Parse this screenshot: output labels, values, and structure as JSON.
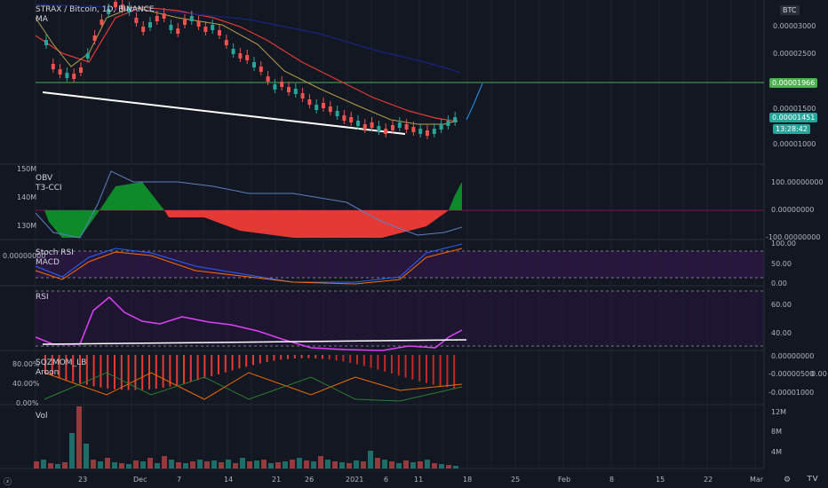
{
  "header": {
    "symbol_line": "STRAX / Bitcoin, 1D, BINANCE",
    "ma_label": "MA"
  },
  "currency_badge": "BTC",
  "price_axis": [
    "0.00003000",
    "0.00002500",
    "0.00001500",
    "0.00001000"
  ],
  "price_tags": {
    "green_line": "0.00001966",
    "last_price": "0.00001451",
    "countdown": "13:28:42"
  },
  "obv": {
    "label": "OBV",
    "label2": "T3-CCI",
    "left_ticks": [
      "150M",
      "140M",
      "130M"
    ],
    "right_ticks": [
      "100.00000000",
      "0.00000000",
      "-100.00000000"
    ]
  },
  "stoch": {
    "label": "Stoch RSI",
    "label2": "MACD",
    "left_value": "0.00000000",
    "right_ticks": [
      "100.00",
      "50.00",
      "0.00"
    ]
  },
  "rsi": {
    "label": "RSI",
    "right_ticks": [
      "60.00",
      "40.00"
    ]
  },
  "sqz": {
    "label": "SQZMOM_LB",
    "label2": "Aroon",
    "left_ticks": [
      "80.00%",
      "40.00%",
      "0.00%"
    ],
    "right_ticks": [
      "0.00000000",
      "-0.00000500",
      "-0.00001000"
    ],
    "right_value": "0.00"
  },
  "vol": {
    "label": "Vol",
    "right_ticks": [
      "12M",
      "8M",
      "4M"
    ]
  },
  "time_axis": [
    "23",
    "Dec",
    "7",
    "14",
    "21",
    "26",
    "2021",
    "6",
    "11",
    "18",
    "25",
    "Feb",
    "8",
    "15",
    "22",
    "Mar"
  ],
  "colors": {
    "bg": "#131722",
    "up": "#26a69a",
    "down": "#ef5350",
    "green_line": "#4caf50",
    "obv_up": "#0f8a2b",
    "obv_down": "#e53935",
    "rsi_line": "#e040fb",
    "ma_red": "#e53935",
    "ma_blue": "#1a237e",
    "ma_olive": "#b8a048"
  },
  "icons": {
    "settings": "gear-icon",
    "chart_type": "tradingview-logo-icon"
  }
}
